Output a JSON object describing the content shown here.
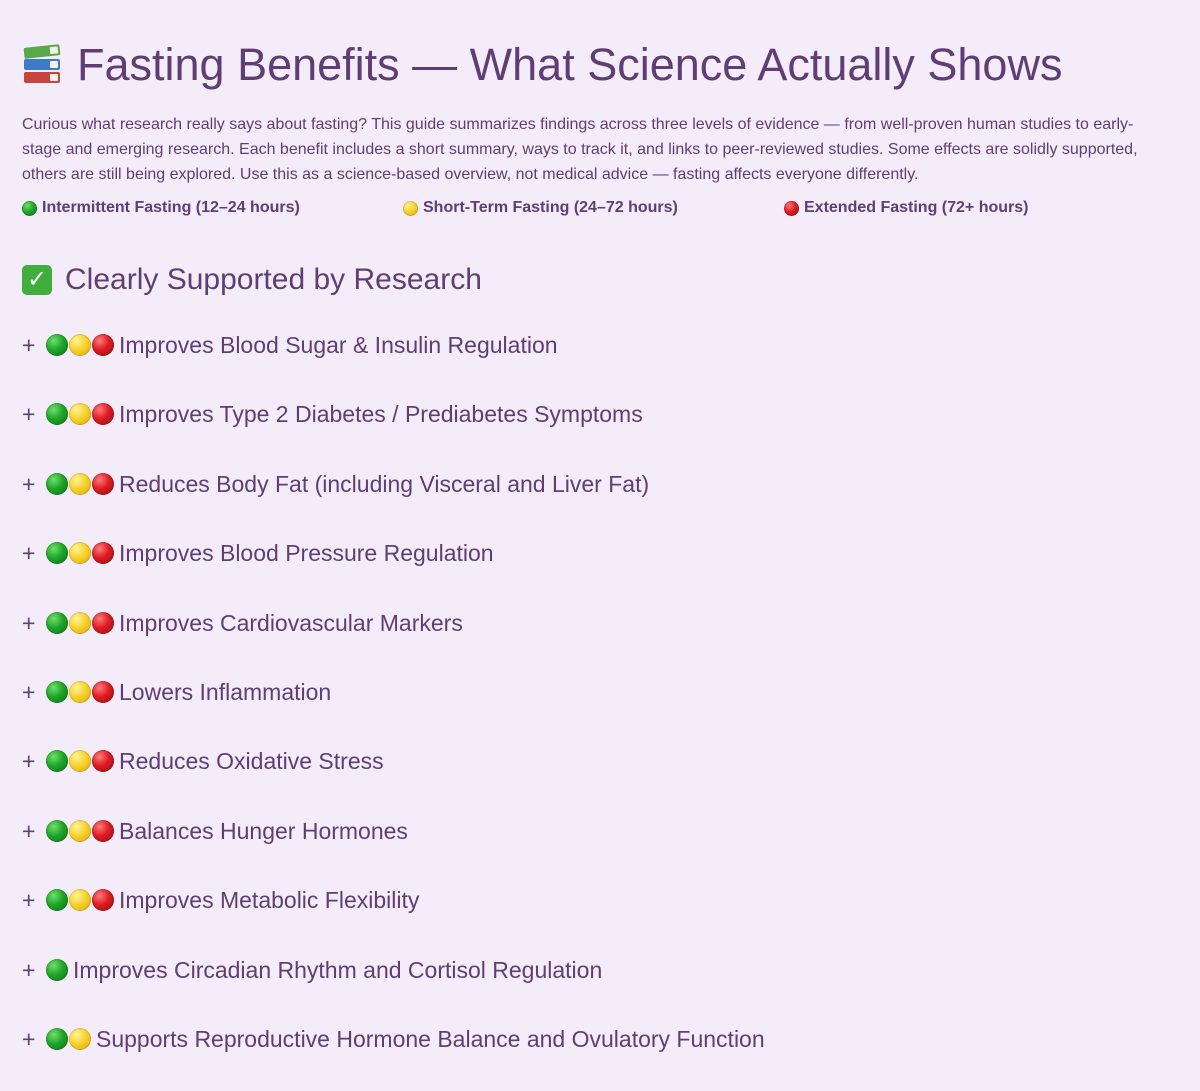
{
  "header": {
    "title": "Fasting Benefits — What Science Actually Shows",
    "icon": "books-icon"
  },
  "intro": "Curious what research really says about fasting? This guide summarizes findings across three levels of evidence — from well-proven human studies to early-stage and emerging research. Each benefit includes a short summary, ways to track it, and links to peer-reviewed studies. Some effects are solidly supported, others are still being explored. Use this as a science-based overview, not medical advice — fasting affects everyone differently.",
  "legend": [
    {
      "color": "green",
      "label": "Intermittent Fasting (12–24 hours)"
    },
    {
      "color": "yellow",
      "label": "Short-Term Fasting (24–72 hours)"
    },
    {
      "color": "red",
      "label": "Extended Fasting (72+ hours)"
    }
  ],
  "colors": {
    "background": "#f4ecf8",
    "text": "#5f3d75",
    "green": "#1fa52a",
    "yellow": "#f8d22b",
    "red": "#dc1c22"
  },
  "section": {
    "icon": "check-mark-icon",
    "check_glyph": "✓",
    "heading": "Clearly Supported by Research",
    "expand_symbol": "+",
    "benefits": [
      {
        "label": "Improves Blood Sugar & Insulin Regulation",
        "dots": [
          "green",
          "yellow",
          "red"
        ]
      },
      {
        "label": "Improves Type 2 Diabetes / Prediabetes Symptoms",
        "dots": [
          "green",
          "yellow",
          "red"
        ]
      },
      {
        "label": "Reduces Body Fat (including Visceral and Liver Fat)",
        "dots": [
          "green",
          "yellow",
          "red"
        ]
      },
      {
        "label": "Improves Blood Pressure Regulation",
        "dots": [
          "green",
          "yellow",
          "red"
        ]
      },
      {
        "label": "Improves Cardiovascular Markers",
        "dots": [
          "green",
          "yellow",
          "red"
        ]
      },
      {
        "label": "Lowers Inflammation",
        "dots": [
          "green",
          "yellow",
          "red"
        ]
      },
      {
        "label": "Reduces Oxidative Stress",
        "dots": [
          "green",
          "yellow",
          "red"
        ]
      },
      {
        "label": "Balances Hunger Hormones",
        "dots": [
          "green",
          "yellow",
          "red"
        ]
      },
      {
        "label": "Improves Metabolic Flexibility",
        "dots": [
          "green",
          "yellow",
          "red"
        ]
      },
      {
        "label": "Improves Circadian Rhythm and Cortisol Regulation",
        "dots": [
          "green"
        ]
      },
      {
        "label": "Supports Reproductive Hormone Balance and Ovulatory Function",
        "dots": [
          "green",
          "yellow"
        ]
      }
    ]
  }
}
